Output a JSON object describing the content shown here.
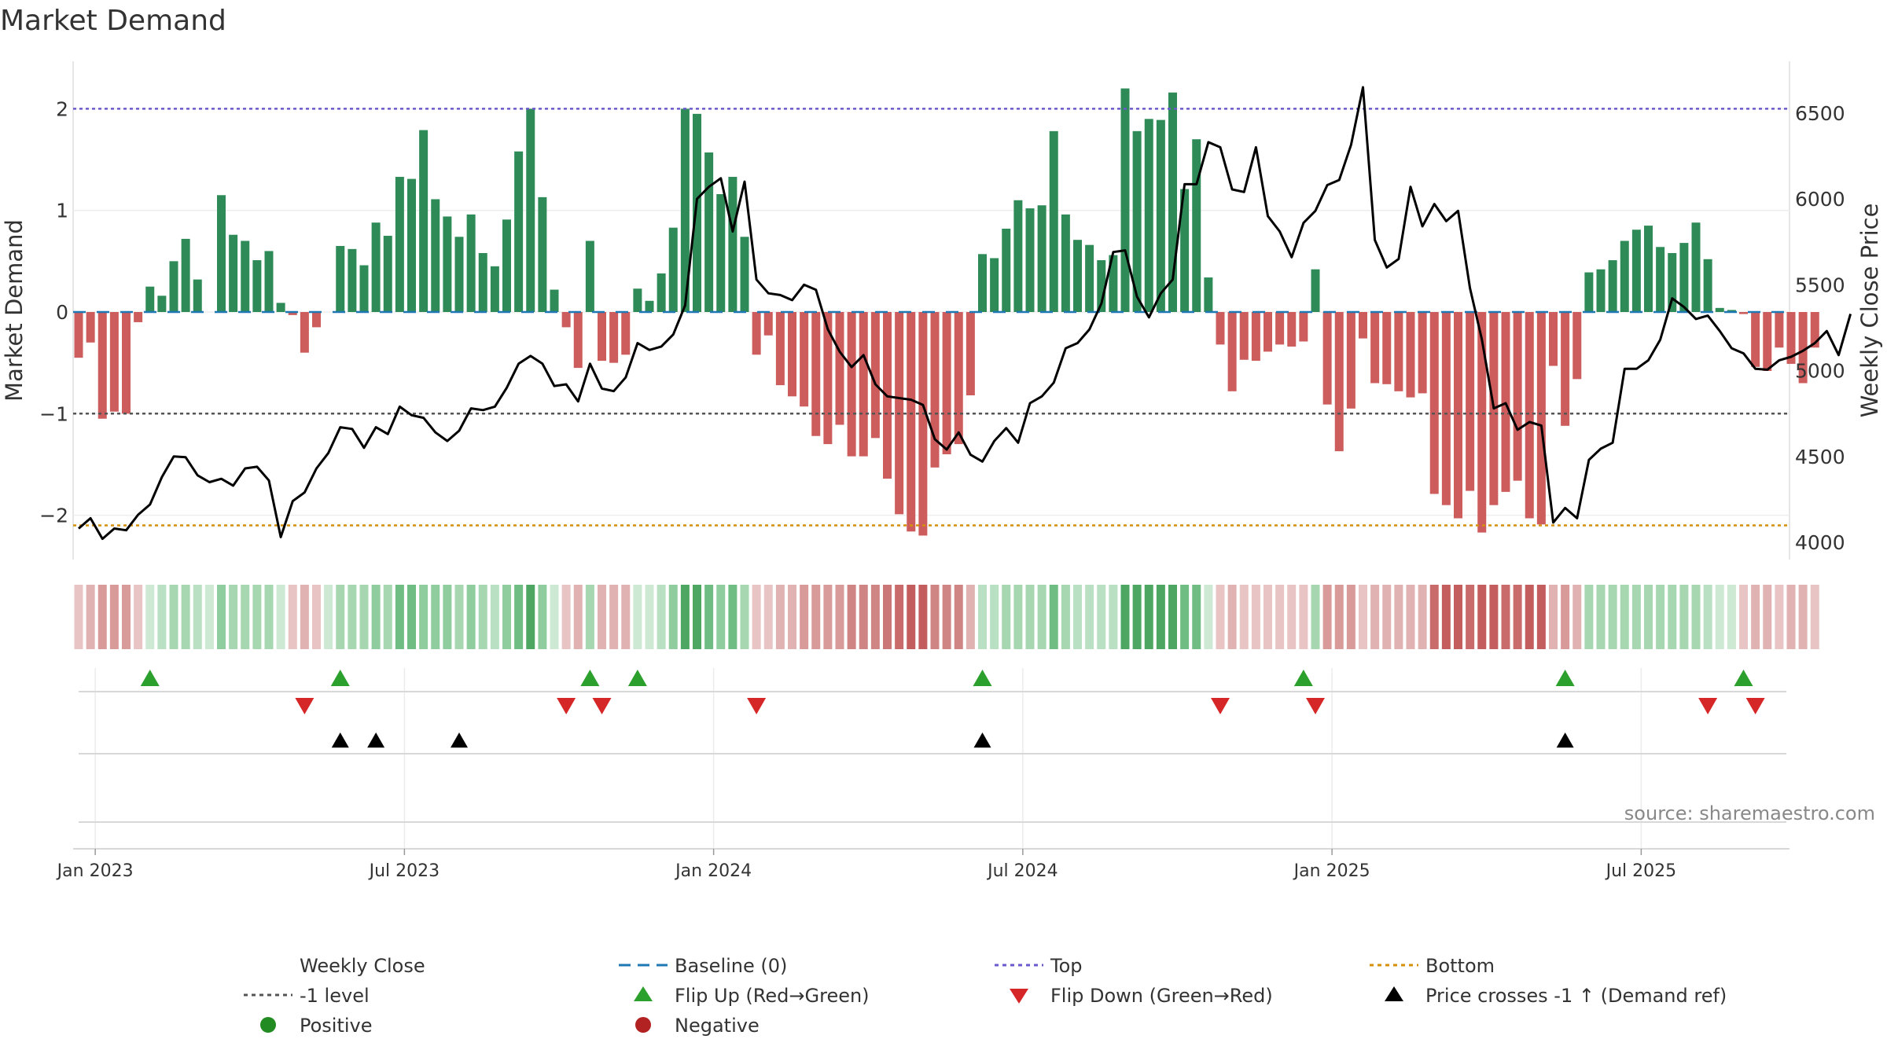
{
  "chart_data": {
    "type": "bar",
    "title": "Market Demand",
    "ylabel": "Market Demand",
    "y2label": "Weekly Close Price",
    "ylim": [
      -2.45,
      2.45
    ],
    "y2lim": [
      3950,
      6680
    ],
    "yticks": [
      "−2",
      "−1",
      "0",
      "1",
      "2"
    ],
    "yticks_values": [
      -2,
      -1,
      0,
      1,
      2
    ],
    "y2ticks": [
      "4000",
      "4500",
      "5000",
      "5500",
      "6000",
      "6500"
    ],
    "y2ticks_values": [
      4000,
      4500,
      5000,
      5500,
      6000,
      6500
    ],
    "x_ticks": [
      "Jan 2023",
      "Jul 2023",
      "Jan 2024",
      "Jul 2024",
      "Jan 2025",
      "Jul 2025"
    ],
    "x_tick_week_index": [
      1,
      27,
      53,
      79,
      105,
      131
    ],
    "x_start": "2022-12-26",
    "x_unit": "week",
    "reference_lines": {
      "top": 2,
      "bottom": -2.1,
      "minus_one": -1,
      "baseline": 0
    },
    "demand": [
      -0.45,
      -0.3,
      -1.05,
      -0.98,
      -1.0,
      -0.1,
      0.25,
      0.16,
      0.5,
      0.72,
      0.32,
      0.0,
      1.15,
      0.76,
      0.7,
      0.51,
      0.6,
      0.09,
      -0.03,
      -0.4,
      -0.15,
      0.0,
      0.65,
      0.62,
      0.46,
      0.88,
      0.75,
      1.33,
      1.31,
      1.79,
      1.11,
      0.94,
      0.74,
      0.96,
      0.58,
      0.45,
      0.91,
      1.58,
      2.0,
      1.13,
      0.22,
      -0.15,
      -0.55,
      0.7,
      -0.48,
      -0.5,
      -0.42,
      0.23,
      0.11,
      0.38,
      0.83,
      2.0,
      1.95,
      1.57,
      1.16,
      1.33,
      0.74,
      -0.42,
      -0.23,
      -0.72,
      -0.83,
      -0.93,
      -1.22,
      -1.3,
      -1.11,
      -1.42,
      -1.42,
      -1.24,
      -1.64,
      -1.99,
      -2.16,
      -2.2,
      -1.53,
      -1.4,
      -1.3,
      -0.82,
      0.57,
      0.53,
      0.82,
      1.1,
      1.02,
      1.05,
      1.78,
      0.96,
      0.71,
      0.66,
      0.51,
      0.56,
      2.2,
      1.78,
      1.9,
      1.89,
      2.16,
      1.21,
      1.7,
      0.34,
      -0.32,
      -0.78,
      -0.47,
      -0.48,
      -0.39,
      -0.32,
      -0.34,
      -0.29,
      0.42,
      -0.91,
      -1.37,
      -0.95,
      -0.26,
      -0.7,
      -0.71,
      -0.78,
      -0.84,
      -0.8,
      -1.79,
      -1.9,
      -2.03,
      -1.76,
      -2.17,
      -1.9,
      -1.77,
      -1.66,
      -2.03,
      -2.09,
      -0.53,
      -1.12,
      -0.66,
      0.39,
      0.42,
      0.51,
      0.7,
      0.81,
      0.85,
      0.64,
      0.58,
      0.68,
      0.88,
      0.52,
      0.04,
      0.02,
      -0.02,
      -0.54,
      -0.58,
      -0.35,
      -0.51,
      -0.7,
      -0.35
    ],
    "weekly_close": [
      4080,
      4140,
      4020,
      4080,
      4070,
      4160,
      4220,
      4380,
      4500,
      4495,
      4390,
      4350,
      4370,
      4330,
      4430,
      4440,
      4360,
      4030,
      4240,
      4290,
      4430,
      4520,
      4670,
      4660,
      4550,
      4670,
      4630,
      4790,
      4740,
      4725,
      4640,
      4590,
      4650,
      4780,
      4770,
      4790,
      4900,
      5040,
      5085,
      5040,
      4910,
      4920,
      4820,
      5040,
      4895,
      4880,
      4960,
      5160,
      5120,
      5140,
      5210,
      5380,
      6000,
      6070,
      6120,
      5810,
      6100,
      5530,
      5450,
      5440,
      5410,
      5500,
      5470,
      5240,
      5110,
      5020,
      5090,
      4920,
      4850,
      4840,
      4830,
      4800,
      4600,
      4540,
      4640,
      4510,
      4470,
      4590,
      4665,
      4580,
      4810,
      4850,
      4930,
      5130,
      5160,
      5240,
      5390,
      5690,
      5700,
      5430,
      5310,
      5450,
      5530,
      6085,
      6085,
      6330,
      6300,
      6055,
      6040,
      6300,
      5900,
      5810,
      5660,
      5860,
      5930,
      6080,
      6110,
      6315,
      6650,
      5760,
      5600,
      5650,
      6070,
      5840,
      5970,
      5870,
      5930,
      5480,
      5180,
      4780,
      4810,
      4655,
      4700,
      4680,
      4115,
      4200,
      4140,
      4480,
      4545,
      4580,
      5010,
      5010,
      5060,
      5180,
      5420,
      5370,
      5300,
      5320,
      5230,
      5130,
      5100,
      5010,
      5005,
      5060,
      5080,
      5115,
      5160,
      5230,
      5090,
      5330
    ],
    "strip_colors": [
      "#e8c4c4",
      "#e0b2b2",
      "#d99a9a",
      "#d99a9a",
      "#d99a9a",
      "#e8c4c4",
      "#cde8d3",
      "#b9e0c2",
      "#a6d7b1",
      "#a6d7b1",
      "#b9e0c2",
      "#cde8d3",
      "#8fcd9e",
      "#a6d7b1",
      "#a6d7b1",
      "#a6d7b1",
      "#a6d7b1",
      "#cde8d3",
      "#e8c4c4",
      "#e0b2b2",
      "#e8c4c4",
      "#cde8d3",
      "#a6d7b1",
      "#a6d7b1",
      "#a6d7b1",
      "#8fcd9e",
      "#a6d7b1",
      "#6fbd83",
      "#6fbd83",
      "#8fcd9e",
      "#8fcd9e",
      "#8fcd9e",
      "#a6d7b1",
      "#8fcd9e",
      "#a6d7b1",
      "#b9e0c2",
      "#8fcd9e",
      "#6fbd83",
      "#4da763",
      "#8fcd9e",
      "#cde8d3",
      "#e8c4c4",
      "#e0b2b2",
      "#a6d7b1",
      "#e0b2b2",
      "#e0b2b2",
      "#e0b2b2",
      "#cde8d3",
      "#cde8d3",
      "#b9e0c2",
      "#8fcd9e",
      "#4da763",
      "#4da763",
      "#6fbd83",
      "#8fcd9e",
      "#6fbd83",
      "#a6d7b1",
      "#e8c4c4",
      "#e8c4c4",
      "#e0b2b2",
      "#e0b2b2",
      "#d99a9a",
      "#d99a9a",
      "#d99a9a",
      "#d99a9a",
      "#d08585",
      "#d08585",
      "#d08585",
      "#cc7777",
      "#c96b6b",
      "#c45e5e",
      "#c45e5e",
      "#d08585",
      "#d08585",
      "#d08585",
      "#e0b2b2",
      "#b9e0c2",
      "#b9e0c2",
      "#a6d7b1",
      "#a6d7b1",
      "#a6d7b1",
      "#a6d7b1",
      "#6fbd83",
      "#a6d7b1",
      "#b9e0c2",
      "#b9e0c2",
      "#b9e0c2",
      "#b9e0c2",
      "#4da763",
      "#4da763",
      "#4da763",
      "#4da763",
      "#4da763",
      "#6fbd83",
      "#6fbd83",
      "#cde8d3",
      "#e8c4c4",
      "#e0b2b2",
      "#e8c4c4",
      "#e8c4c4",
      "#e8c4c4",
      "#e8c4c4",
      "#e8c4c4",
      "#e8c4c4",
      "#a6d7b1",
      "#d99a9a",
      "#d99a9a",
      "#d99a9a",
      "#e8c4c4",
      "#e0b2b2",
      "#e0b2b2",
      "#e0b2b2",
      "#e0b2b2",
      "#e0b2b2",
      "#c96b6b",
      "#c45e5e",
      "#c45e5e",
      "#c96b6b",
      "#c45e5e",
      "#c45e5e",
      "#c96b6b",
      "#c96b6b",
      "#c45e5e",
      "#c45e5e",
      "#e0b2b2",
      "#d99a9a",
      "#e0b2b2",
      "#a6d7b1",
      "#a6d7b1",
      "#a6d7b1",
      "#a6d7b1",
      "#a6d7b1",
      "#a6d7b1",
      "#a6d7b1",
      "#a6d7b1",
      "#a6d7b1",
      "#a6d7b1",
      "#b9e0c2",
      "#cde8d3",
      "#cde8d3",
      "#e8c4c4",
      "#e0b2b2",
      "#e0b2b2",
      "#e8c4c4",
      "#e0b2b2",
      "#e0b2b2",
      "#e8c4c4"
    ],
    "flip_up_weeks": [
      6,
      22,
      43,
      47,
      76,
      103,
      125,
      140
    ],
    "flip_down_weeks": [
      19,
      41,
      44,
      57,
      96,
      104,
      137,
      141
    ],
    "cross_up_weeks": [
      22,
      25,
      32,
      76,
      125
    ],
    "colors": {
      "positive_bar": "#2e8b57",
      "negative_bar": "#cd5c5c",
      "close_line": "#000000",
      "baseline": "#1f77b4",
      "top": "#6a5acd",
      "bottom": "#d4900a",
      "minus_one": "#555555",
      "flip_up": "#2ca02c",
      "flip_down": "#d62728",
      "cross_up": "#000000",
      "positive_dot": "#228b22",
      "negative_dot": "#b22222"
    },
    "legend": [
      {
        "key": "close",
        "label": "Weekly Close",
        "marker": "line"
      },
      {
        "key": "baseline",
        "label": "Baseline (0)",
        "marker": "dash"
      },
      {
        "key": "top",
        "label": "Top",
        "marker": "dot-line"
      },
      {
        "key": "bottom",
        "label": "Bottom",
        "marker": "dot-line"
      },
      {
        "key": "minus_one",
        "label": "-1 level",
        "marker": "dot-line"
      },
      {
        "key": "flip_up",
        "label": "Flip Up (Red→Green)",
        "marker": "tri-up"
      },
      {
        "key": "flip_down",
        "label": "Flip Down (Green→Red)",
        "marker": "tri-down"
      },
      {
        "key": "cross_up",
        "label": "Price crosses -1 ↑ (Demand ref)",
        "marker": "tri-up"
      },
      {
        "key": "positive_dot",
        "label": "Positive",
        "marker": "circle"
      },
      {
        "key": "negative_dot",
        "label": "Negative",
        "marker": "circle"
      }
    ],
    "source": "source: sharemaestro.com"
  }
}
